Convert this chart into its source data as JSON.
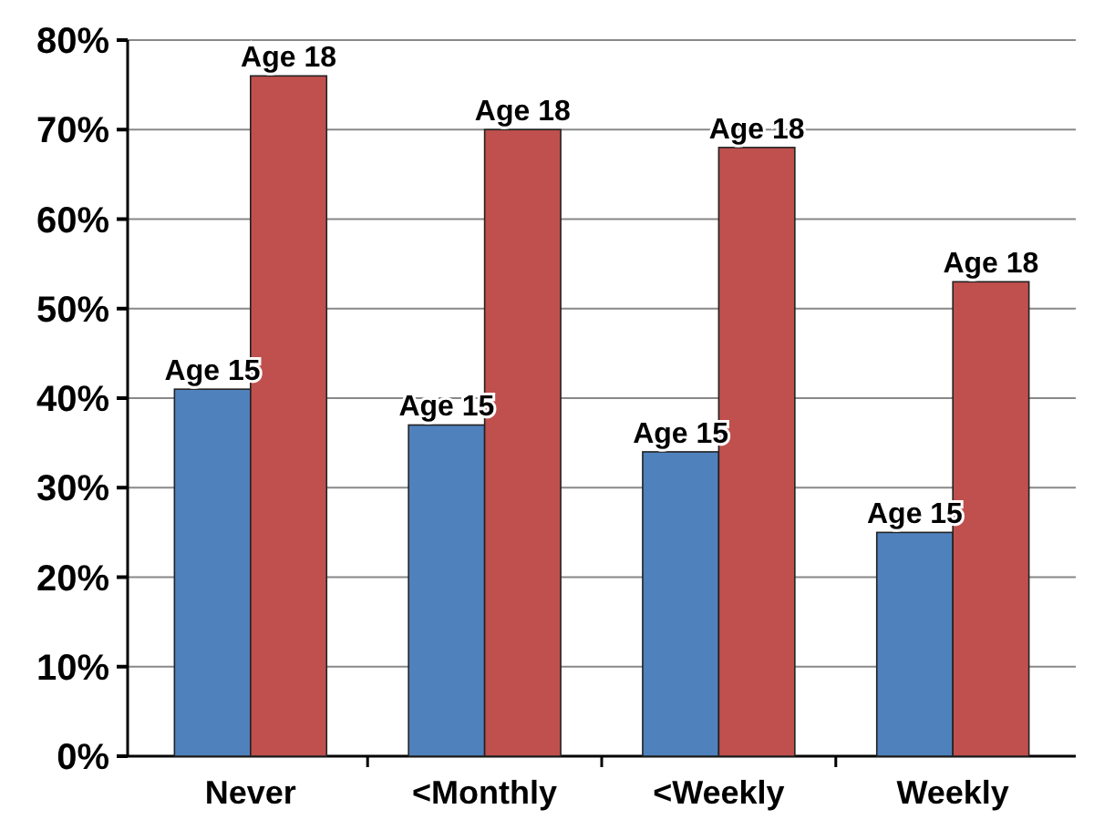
{
  "chart_data": {
    "type": "bar",
    "categories": [
      "Never",
      "<Monthly",
      "<Weekly",
      "Weekly"
    ],
    "series": [
      {
        "name": "Age 15",
        "color": "#4f81bd",
        "values": [
          41,
          37,
          34,
          25
        ]
      },
      {
        "name": "Age 18",
        "color": "#c0504d",
        "values": [
          76,
          70,
          68,
          53
        ]
      }
    ],
    "ylim": [
      0,
      80
    ],
    "yticks": [
      {
        "value": 0,
        "label": "0%"
      },
      {
        "value": 10,
        "label": "10%"
      },
      {
        "value": 20,
        "label": "20%"
      },
      {
        "value": 30,
        "label": "30%"
      },
      {
        "value": 40,
        "label": "40%"
      },
      {
        "value": 50,
        "label": "50%"
      },
      {
        "value": 60,
        "label": "60%"
      },
      {
        "value": 70,
        "label": "70%"
      },
      {
        "value": 80,
        "label": "80%"
      }
    ],
    "grid": "y"
  }
}
